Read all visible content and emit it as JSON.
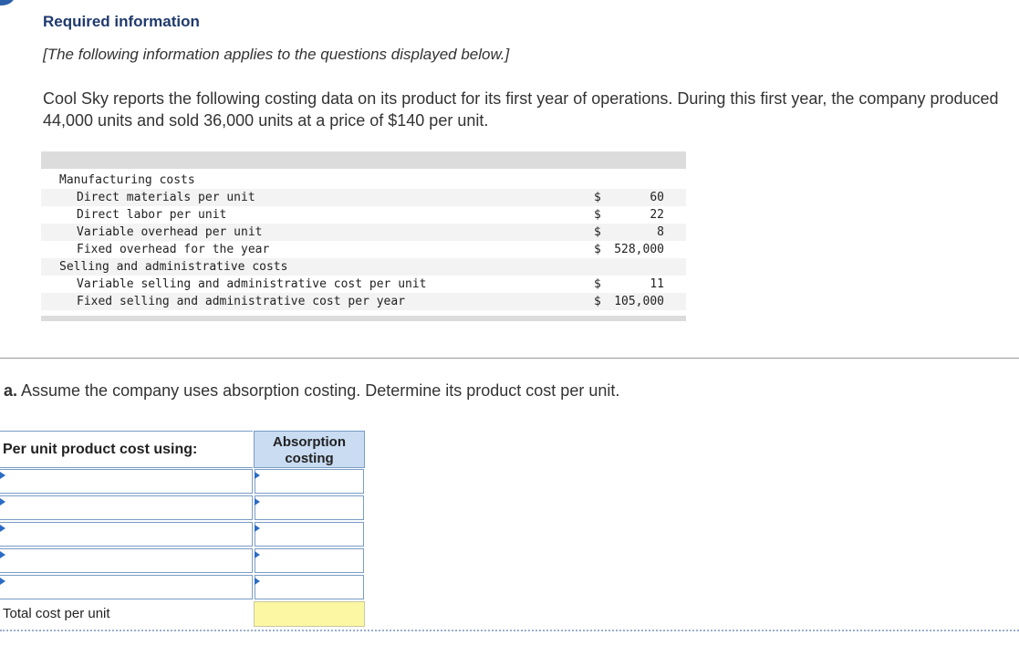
{
  "header": {
    "title": "Required information",
    "note": "[The following information applies to the questions displayed below.]"
  },
  "intro": "Cool Sky reports the following costing data on its product for its first year of operations. During this first year, the company produced 44,000 units and sold 36,000 units at a price of $140 per unit.",
  "costs": [
    {
      "label": "Manufacturing costs",
      "level": 0,
      "currency": "",
      "value": ""
    },
    {
      "label": "Direct materials per unit",
      "level": 1,
      "currency": "$",
      "value": "60"
    },
    {
      "label": "Direct labor per unit",
      "level": 1,
      "currency": "$",
      "value": "22"
    },
    {
      "label": "Variable overhead per unit",
      "level": 1,
      "currency": "$",
      "value": "8"
    },
    {
      "label": "Fixed overhead for the year",
      "level": 1,
      "currency": "$",
      "value": "528,000"
    },
    {
      "label": "Selling and administrative costs",
      "level": 0,
      "currency": "",
      "value": ""
    },
    {
      "label": "Variable selling and administrative cost per unit",
      "level": 1,
      "currency": "$",
      "value": "11"
    },
    {
      "label": "Fixed selling and administrative cost per year",
      "level": 1,
      "currency": "$",
      "value": "105,000"
    }
  ],
  "question": {
    "prefix": "a.",
    "text": " Assume the company uses absorption costing. Determine its product cost per unit."
  },
  "answer_table": {
    "header_label": "Per unit product cost using:",
    "column_header": "Absorption costing",
    "rows": [
      {
        "label": "",
        "value": ""
      },
      {
        "label": "",
        "value": ""
      },
      {
        "label": "",
        "value": ""
      },
      {
        "label": "",
        "value": ""
      },
      {
        "label": "",
        "value": ""
      }
    ],
    "total_label": "Total cost per unit",
    "total_value": ""
  },
  "colors": {
    "title": "#1f3a6e",
    "header_fill": "#c9dcf2",
    "total_fill": "#fcf7a3",
    "arrow": "#2b6cc4"
  }
}
